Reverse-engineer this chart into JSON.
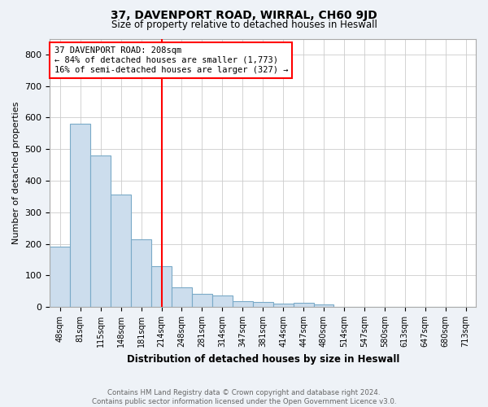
{
  "title": "37, DAVENPORT ROAD, WIRRAL, CH60 9JD",
  "subtitle": "Size of property relative to detached houses in Heswall",
  "xlabel": "Distribution of detached houses by size in Heswall",
  "ylabel": "Number of detached properties",
  "bar_labels": [
    "48sqm",
    "81sqm",
    "115sqm",
    "148sqm",
    "181sqm",
    "214sqm",
    "248sqm",
    "281sqm",
    "314sqm",
    "347sqm",
    "381sqm",
    "414sqm",
    "447sqm",
    "480sqm",
    "514sqm",
    "547sqm",
    "580sqm",
    "613sqm",
    "647sqm",
    "680sqm",
    "713sqm"
  ],
  "bar_values": [
    190,
    580,
    480,
    355,
    215,
    130,
    63,
    42,
    35,
    17,
    16,
    10,
    13,
    8,
    0,
    0,
    0,
    0,
    0,
    0,
    0
  ],
  "bar_color": "#ccdded",
  "bar_edgecolor": "#7aaac8",
  "ylim": [
    0,
    850
  ],
  "yticks": [
    0,
    100,
    200,
    300,
    400,
    500,
    600,
    700,
    800
  ],
  "redline_bin_index": 5.0,
  "annotation_text_line1": "37 DAVENPORT ROAD: 208sqm",
  "annotation_text_line2": "← 84% of detached houses are smaller (1,773)",
  "annotation_text_line3": "16% of semi-detached houses are larger (327) →",
  "footer_line1": "Contains HM Land Registry data © Crown copyright and database right 2024.",
  "footer_line2": "Contains public sector information licensed under the Open Government Licence v3.0.",
  "background_color": "#eef2f7",
  "plot_background_color": "#ffffff",
  "grid_color": "#cccccc"
}
